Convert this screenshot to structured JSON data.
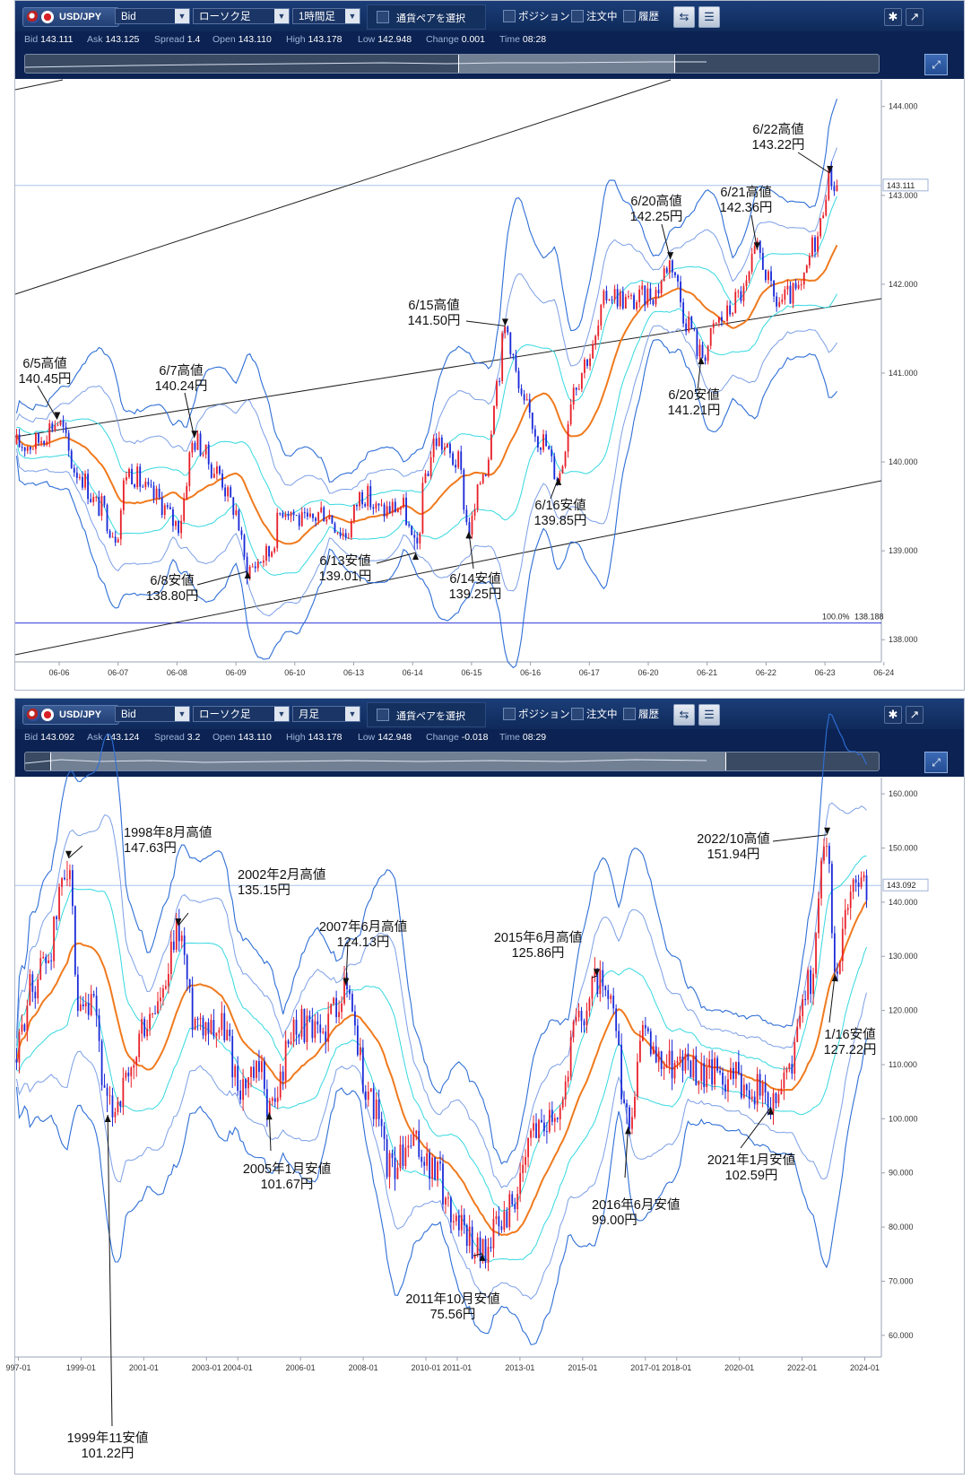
{
  "panels": [
    {
      "toolbar": {
        "symbol": "USD/JPY",
        "price_type": "Bid",
        "chart_type": "ローソク足",
        "timeframe": "1時間足",
        "pair_select_label": "通貨ペアを選択",
        "position_label": "ポジション",
        "orders_label": "注文中",
        "history_label": "履歴",
        "icons": [
          "chart-swap-icon",
          "chart-settings-icon",
          "gear-icon",
          "popout-icon",
          "zoom-icon"
        ]
      },
      "quote": {
        "bid_label": "Bid",
        "bid": "143.111",
        "ask_label": "Ask",
        "ask": "143.125",
        "spread_label": "Spread",
        "spread": "1.4",
        "open_label": "Open",
        "open": "143.110",
        "high_label": "High",
        "high": "143.178",
        "low_label": "Low",
        "low": "142.948",
        "change_label": "Change",
        "change": "0.001",
        "time_label": "Time",
        "time": "08:28"
      }
    },
    {
      "toolbar": {
        "symbol": "USD/JPY",
        "price_type": "Bid",
        "chart_type": "ローソク足",
        "timeframe": "月足",
        "pair_select_label": "通貨ペアを選択",
        "position_label": "ポジション",
        "orders_label": "注文中",
        "history_label": "履歴",
        "icons": [
          "chart-swap-icon",
          "chart-settings-icon",
          "gear-icon",
          "popout-icon",
          "zoom-icon"
        ]
      },
      "quote": {
        "bid_label": "Bid",
        "bid": "143.092",
        "ask_label": "Ask",
        "ask": "143.124",
        "spread_label": "Spread",
        "spread": "3.2",
        "open_label": "Open",
        "open": "143.110",
        "high_label": "High",
        "high": "143.178",
        "low_label": "Low",
        "low": "142.948",
        "change_label": "Change",
        "change": "-0.018",
        "time_label": "Time",
        "time": "08:29"
      }
    }
  ],
  "colors": {
    "up_candle": "#e8202a",
    "down_candle": "#1a2ad8",
    "ma_center": "#f07a1e",
    "band_1sigma": "#35d8e0",
    "band_2sigma": "#7c9fe6",
    "band_3sigma": "#2f6fd6",
    "trendline": "#222222",
    "toolbar_bg": "#0e2a5c"
  },
  "chart_data": [
    {
      "type": "candlestick",
      "indicators": [
        "bollinger-bands",
        "moving-average",
        "trendline-channel"
      ],
      "x_ticks": [
        "06-06",
        "06-07",
        "06-08",
        "06-09",
        "06-10",
        "06-13",
        "06-14",
        "06-15",
        "06-16",
        "06-17",
        "06-20",
        "06-21",
        "06-22",
        "06-23",
        "06-24"
      ],
      "y_ticks": [
        "144.000",
        "143.000",
        "142.000",
        "141.000",
        "140.000",
        "139.000",
        "138.000"
      ],
      "ylim": [
        137.75,
        144.3
      ],
      "current_price": "143.111",
      "retracement_label": "100.0%",
      "retracement_value": "138.188",
      "annotations": [
        {
          "line1": "6/5高値",
          "line2": "140.45円",
          "x": 0.45,
          "y": 140.45
        },
        {
          "line1": "6/7高値",
          "line2": "140.24円",
          "x": 2.9,
          "y": 140.24
        },
        {
          "line1": "6/8安値",
          "line2": "138.80円",
          "x": 3.85,
          "y": 138.8
        },
        {
          "line1": "6/13安値",
          "line2": "139.01円",
          "x": 6.85,
          "y": 139.01
        },
        {
          "line1": "6/14安値",
          "line2": "139.25円",
          "x": 7.8,
          "y": 139.25
        },
        {
          "line1": "6/15高値",
          "line2": "141.50円",
          "x": 8.45,
          "y": 141.5
        },
        {
          "line1": "6/16安値",
          "line2": "139.85円",
          "x": 9.4,
          "y": 139.85
        },
        {
          "line1": "6/20高値",
          "line2": "142.25円",
          "x": 11.4,
          "y": 142.25
        },
        {
          "line1": "6/20安値",
          "line2": "141.21円",
          "x": 11.95,
          "y": 141.21
        },
        {
          "line1": "6/21高値",
          "line2": "142.36円",
          "x": 12.95,
          "y": 142.36
        },
        {
          "line1": "6/22高値",
          "line2": "143.22円",
          "x": 14.25,
          "y": 143.22
        }
      ],
      "price_path": [
        [
          0.0,
          140.2
        ],
        [
          0.45,
          140.45
        ],
        [
          0.8,
          139.9
        ],
        [
          1.2,
          139.5
        ],
        [
          1.5,
          139.2
        ],
        [
          1.7,
          139.9
        ],
        [
          2.2,
          139.6
        ],
        [
          2.6,
          139.3
        ],
        [
          2.9,
          140.24
        ],
        [
          3.3,
          139.9
        ],
        [
          3.6,
          139.5
        ],
        [
          3.85,
          138.8
        ],
        [
          4.2,
          138.95
        ],
        [
          4.5,
          139.5
        ],
        [
          4.9,
          139.3
        ],
        [
          5.2,
          139.45
        ],
        [
          5.6,
          139.2
        ],
        [
          5.9,
          139.65
        ],
        [
          6.2,
          139.45
        ],
        [
          6.6,
          139.5
        ],
        [
          6.85,
          139.01
        ],
        [
          7.05,
          139.9
        ],
        [
          7.2,
          140.25
        ],
        [
          7.6,
          140.0
        ],
        [
          7.8,
          139.25
        ],
        [
          8.1,
          139.95
        ],
        [
          8.3,
          140.9
        ],
        [
          8.45,
          141.5
        ],
        [
          8.8,
          140.6
        ],
        [
          9.1,
          140.25
        ],
        [
          9.4,
          139.85
        ],
        [
          9.7,
          140.9
        ],
        [
          9.95,
          141.2
        ],
        [
          10.3,
          141.9
        ],
        [
          10.7,
          141.8
        ],
        [
          11.1,
          141.9
        ],
        [
          11.4,
          142.25
        ],
        [
          11.7,
          141.6
        ],
        [
          11.95,
          141.21
        ],
        [
          12.3,
          141.6
        ],
        [
          12.7,
          141.9
        ],
        [
          12.95,
          142.36
        ],
        [
          13.3,
          141.8
        ],
        [
          13.7,
          141.9
        ],
        [
          14.0,
          142.5
        ],
        [
          14.25,
          143.22
        ],
        [
          14.35,
          143.11
        ]
      ]
    },
    {
      "type": "candlestick",
      "indicators": [
        "bollinger-bands",
        "moving-average"
      ],
      "x_ticks": [
        "997-01",
        "1999-01",
        "2001-01",
        "2003-01",
        "2004-01",
        "2006-01",
        "2008-01",
        "2010-01",
        "2011-01",
        "2013-01",
        "2015-01",
        "2017-01",
        "2018-01",
        "2020-01",
        "2022-01",
        "2024-01"
      ],
      "y_ticks": [
        "160.000",
        "150.000",
        "140.000",
        "130.000",
        "120.000",
        "110.000",
        "100.000",
        "90.000",
        "80.000",
        "70.000",
        "60.000"
      ],
      "ylim": [
        56,
        163
      ],
      "current_price": "143.092",
      "annotations": [
        {
          "line1": "1998年8月高値",
          "line2": "147.63円",
          "x": 1998.6,
          "y": 147.63
        },
        {
          "line1": "1999年11安値",
          "line2": "101.22円",
          "x": 1999.85,
          "y": 101.22
        },
        {
          "line1": "2002年2月高値",
          "line2": "135.15円",
          "x": 2002.1,
          "y": 135.15
        },
        {
          "line1": "2005年1月安値",
          "line2": "101.67円",
          "x": 2005.0,
          "y": 101.67
        },
        {
          "line1": "2007年6月高値",
          "line2": "124.13円",
          "x": 2007.45,
          "y": 124.13
        },
        {
          "line1": "2011年10月安値",
          "line2": "75.56円",
          "x": 2011.8,
          "y": 75.56
        },
        {
          "line1": "2015年6月高値",
          "line2": "125.86円",
          "x": 2015.45,
          "y": 125.86
        },
        {
          "line1": "2016年6月安値",
          "line2": "99.00円",
          "x": 2016.45,
          "y": 99.0
        },
        {
          "line1": "2021年1月安値",
          "line2": "102.59円",
          "x": 2021.0,
          "y": 102.59
        },
        {
          "line1": "2022/10高値",
          "line2": "151.94円",
          "x": 2022.8,
          "y": 151.94
        },
        {
          "line1": "1/16安値",
          "line2": "127.22円",
          "x": 2023.05,
          "y": 127.22
        }
      ],
      "price_path": [
        [
          1996.9,
          111
        ],
        [
          1997.4,
          124
        ],
        [
          1997.9,
          130
        ],
        [
          1998.6,
          147.63
        ],
        [
          1998.9,
          118
        ],
        [
          1999.4,
          120
        ],
        [
          1999.85,
          101.22
        ],
        [
          2000.5,
          106
        ],
        [
          2001.0,
          117
        ],
        [
          2001.6,
          122
        ],
        [
          2002.1,
          135.15
        ],
        [
          2002.6,
          119
        ],
        [
          2003.5,
          117
        ],
        [
          2004.1,
          106
        ],
        [
          2004.8,
          108
        ],
        [
          2005.0,
          101.67
        ],
        [
          2005.9,
          118
        ],
        [
          2006.5,
          115
        ],
        [
          2007.45,
          124.13
        ],
        [
          2008.2,
          104
        ],
        [
          2008.9,
          91
        ],
        [
          2009.6,
          95
        ],
        [
          2010.3,
          90
        ],
        [
          2010.9,
          82
        ],
        [
          2011.8,
          75.56
        ],
        [
          2012.3,
          80
        ],
        [
          2012.9,
          86
        ],
        [
          2013.5,
          99
        ],
        [
          2014.2,
          102
        ],
        [
          2014.9,
          119
        ],
        [
          2015.45,
          125.86
        ],
        [
          2015.9,
          120
        ],
        [
          2016.45,
          99.0
        ],
        [
          2016.9,
          115
        ],
        [
          2017.5,
          111
        ],
        [
          2018.4,
          110
        ],
        [
          2019.0,
          108
        ],
        [
          2019.7,
          108
        ],
        [
          2020.4,
          106
        ],
        [
          2021.0,
          102.59
        ],
        [
          2021.6,
          110
        ],
        [
          2022.2,
          125
        ],
        [
          2022.8,
          151.94
        ],
        [
          2023.05,
          127.22
        ],
        [
          2023.4,
          138
        ],
        [
          2023.5,
          143.09
        ]
      ]
    }
  ]
}
